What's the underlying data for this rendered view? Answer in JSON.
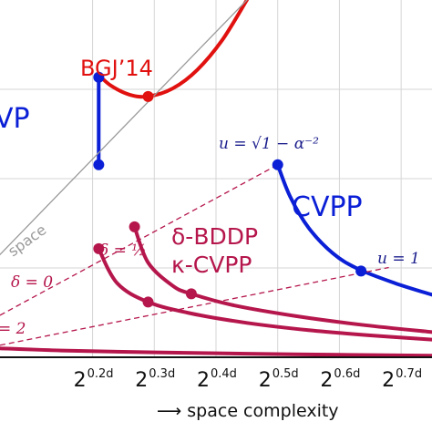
{
  "chart_data": {
    "type": "line",
    "xlabel": "⟶ space complexity",
    "x_ticks": [
      {
        "base": "2",
        "exp": "0.2d"
      },
      {
        "base": "2",
        "exp": "0.3d"
      },
      {
        "base": "2",
        "exp": "0.4d"
      },
      {
        "base": "2",
        "exp": "0.5d"
      },
      {
        "base": "2",
        "exp": "0.6d"
      },
      {
        "base": "2",
        "exp": "0.7d"
      }
    ],
    "x_tick_values": [
      0.2,
      0.3,
      0.4,
      0.5,
      0.6,
      0.7
    ],
    "xlim": [
      0.05,
      0.75
    ],
    "ylim": [
      0.0,
      0.4
    ],
    "grid": true,
    "colors": {
      "red": "#e0110f",
      "blue": "#0a1fd6",
      "crimson": "#b5164c",
      "gray": "#9a9a9a",
      "darkblue": "#1b1e8c"
    },
    "series": [
      {
        "name": "BGJ'14",
        "color": "#e0110f",
        "style": "solid",
        "x": [
          0.21,
          0.23,
          0.26,
          0.29,
          0.33,
          0.37,
          0.41,
          0.45
        ],
        "y": [
          0.316,
          0.304,
          0.294,
          0.292,
          0.301,
          0.322,
          0.355,
          0.4
        ]
      },
      {
        "name": "VP",
        "color": "#0a1fd6",
        "style": "solid",
        "x": [
          0.21,
          0.21
        ],
        "y": [
          0.3135,
          0.2155
        ]
      },
      {
        "name": "CVPP",
        "color": "#0a1fd6",
        "style": "solid",
        "x": [
          0.5,
          0.52,
          0.55,
          0.59,
          0.63,
          0.69,
          0.75
        ],
        "y": [
          0.2155,
          0.18,
          0.145,
          0.116,
          0.099,
          0.083,
          0.07
        ]
      },
      {
        "name": "space",
        "color": "#9a9a9a",
        "style": "solid",
        "x": [
          0.05,
          0.45
        ],
        "y": [
          0.115,
          0.4
        ]
      },
      {
        "name": "delta-0",
        "color": "#b5164c",
        "style": "solid",
        "x": [
          0.21,
          0.24,
          0.29,
          0.36,
          0.45,
          0.55,
          0.65,
          0.75
        ],
        "y": [
          0.1215,
          0.0828,
          0.0618,
          0.049,
          0.0385,
          0.0303,
          0.0245,
          0.0198
        ]
      },
      {
        "name": "delta-half",
        "color": "#b5164c",
        "style": "solid",
        "x": [
          0.268,
          0.29,
          0.33,
          0.36,
          0.43,
          0.53,
          0.64,
          0.75
        ],
        "y": [
          0.146,
          0.106,
          0.08,
          0.071,
          0.058,
          0.046,
          0.036,
          0.0282
        ]
      },
      {
        "name": "delta-2",
        "color": "#b5164c",
        "style": "solid",
        "x": [
          0.05,
          0.15,
          0.3,
          0.45,
          0.6,
          0.75
        ],
        "y": [
          0.01,
          0.0075,
          0.0055,
          0.004,
          0.0028,
          0.0018
        ]
      },
      {
        "name": "dashed-upper",
        "color": "#b5164c",
        "style": "dashed",
        "x": [
          0.05,
          0.5
        ],
        "y": [
          0.047,
          0.2155
        ]
      },
      {
        "name": "dashed-lower",
        "color": "#b5164c",
        "style": "dashed",
        "x": [
          0.05,
          0.68
        ],
        "y": [
          0.0135,
          0.1005
        ]
      }
    ],
    "points": [
      {
        "x": 0.21,
        "y": 0.3135,
        "color": "#0a1fd6"
      },
      {
        "x": 0.21,
        "y": 0.2155,
        "color": "#0a1fd6"
      },
      {
        "x": 0.29,
        "y": 0.292,
        "color": "#e0110f"
      },
      {
        "x": 0.5,
        "y": 0.2155,
        "color": "#0a1fd6"
      },
      {
        "x": 0.635,
        "y": 0.0965,
        "color": "#0a1fd6"
      },
      {
        "x": 0.21,
        "y": 0.1215,
        "color": "#b5164c"
      },
      {
        "x": 0.268,
        "y": 0.146,
        "color": "#b5164c"
      },
      {
        "x": 0.29,
        "y": 0.0618,
        "color": "#b5164c"
      },
      {
        "x": 0.36,
        "y": 0.071,
        "color": "#b5164c"
      }
    ],
    "annotations": {
      "bgj": "BGJ’14",
      "vp": "VP",
      "cvpp": "CVPP",
      "space": "space",
      "bddp": "δ-BDDP",
      "kcvpp": "κ-CVPP",
      "u_sqrt": "u = √1 − α⁻²",
      "u_one": "u = 1",
      "delta_half": "δ = ½",
      "delta_zero": "δ = 0",
      "delta_two": "= 2"
    }
  }
}
